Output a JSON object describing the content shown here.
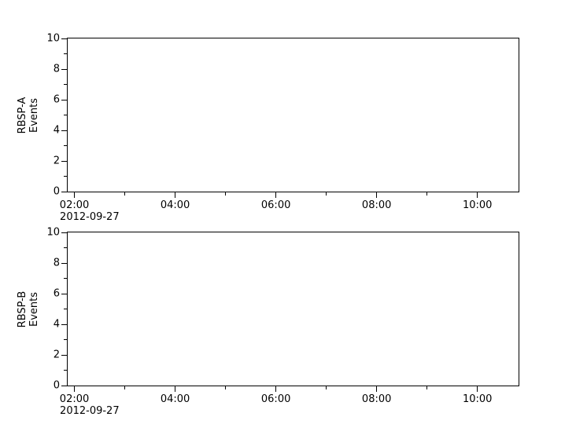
{
  "figure": {
    "background_color": "#ffffff",
    "axis_color": "#000000",
    "text_color": "#000000"
  },
  "chart_data": [
    {
      "type": "line",
      "title": "",
      "ylabel_lines": [
        "RBSP-A",
        "Events"
      ],
      "xlabel": "",
      "ylim": [
        0,
        10
      ],
      "y_major_ticks": [
        0,
        2,
        4,
        6,
        8,
        10
      ],
      "y_minor_ticks": [
        1,
        3,
        5,
        7,
        9
      ],
      "x_axis": {
        "date_label": "2012-09-27",
        "start_minutes": 112,
        "end_minutes": 649,
        "major_ticks": [
          {
            "minutes": 120,
            "label": "02:00"
          },
          {
            "minutes": 240,
            "label": "04:00"
          },
          {
            "minutes": 360,
            "label": "06:00"
          },
          {
            "minutes": 480,
            "label": "08:00"
          },
          {
            "minutes": 600,
            "label": "10:00"
          }
        ],
        "minor_ticks_minutes": [
          180,
          300,
          420,
          540
        ]
      },
      "grid": false,
      "legend": "none",
      "series": []
    },
    {
      "type": "line",
      "title": "",
      "ylabel_lines": [
        "RBSP-B",
        "Events"
      ],
      "xlabel": "",
      "ylim": [
        0,
        10
      ],
      "y_major_ticks": [
        0,
        2,
        4,
        6,
        8,
        10
      ],
      "y_minor_ticks": [
        1,
        3,
        5,
        7,
        9
      ],
      "x_axis": {
        "date_label": "2012-09-27",
        "start_minutes": 112,
        "end_minutes": 649,
        "major_ticks": [
          {
            "minutes": 120,
            "label": "02:00"
          },
          {
            "minutes": 240,
            "label": "04:00"
          },
          {
            "minutes": 360,
            "label": "06:00"
          },
          {
            "minutes": 480,
            "label": "08:00"
          },
          {
            "minutes": 600,
            "label": "10:00"
          }
        ],
        "minor_ticks_minutes": [
          180,
          300,
          420,
          540
        ]
      },
      "grid": false,
      "legend": "none",
      "series": []
    }
  ]
}
